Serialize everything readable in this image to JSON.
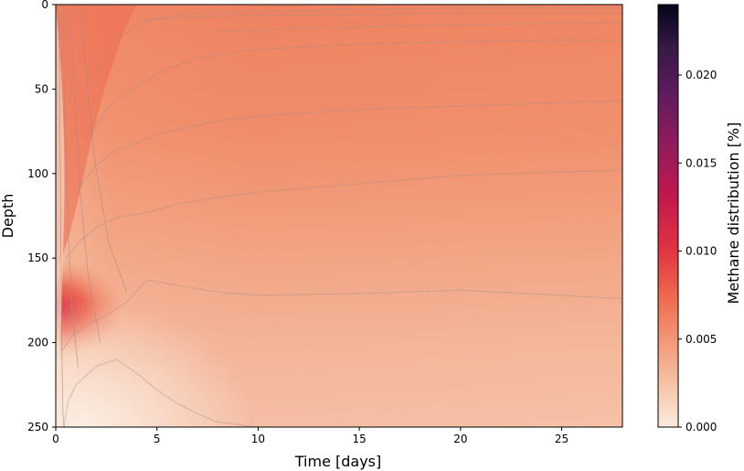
{
  "chart_data": {
    "type": "heatmap",
    "title": "",
    "xlabel": "Time [days]",
    "ylabel": "Depth",
    "colorbar_label": "Methane distribution [%]",
    "xlim": [
      0,
      28
    ],
    "ylim": [
      250,
      0
    ],
    "y_inverted": true,
    "x_ticks": [
      0,
      5,
      10,
      15,
      20,
      25
    ],
    "x_tick_labels": [
      "0",
      "5",
      "10",
      "15",
      "20",
      "25"
    ],
    "y_ticks": [
      0,
      50,
      100,
      150,
      200,
      250
    ],
    "y_tick_labels": [
      "0",
      "50",
      "100",
      "150",
      "200",
      "250"
    ],
    "colorbar_range": [
      0,
      0.024
    ],
    "colorbar_ticks": [
      0,
      0.005,
      0.01,
      0.015,
      0.02
    ],
    "colorbar_tick_labels": [
      "0.000",
      "0.005",
      "0.010",
      "0.015",
      "0.020"
    ],
    "colormap": "rocket_r",
    "colormap_stops": [
      {
        "v": 0.0,
        "color": "#faebdd"
      },
      {
        "v": 0.1,
        "color": "#f6c4a8"
      },
      {
        "v": 0.2,
        "color": "#f39a7a"
      },
      {
        "v": 0.3,
        "color": "#ef6d4f"
      },
      {
        "v": 0.42,
        "color": "#e13342"
      },
      {
        "v": 0.55,
        "color": "#c0184f"
      },
      {
        "v": 0.68,
        "color": "#8c1c5c"
      },
      {
        "v": 0.8,
        "color": "#5a1b5c"
      },
      {
        "v": 0.9,
        "color": "#351a44"
      },
      {
        "v": 1.0,
        "color": "#03051a"
      }
    ],
    "contour_color": "#a88c86",
    "grid": false,
    "field_samples": [
      {
        "time": 0,
        "depth": 180,
        "value": 0.0105
      },
      {
        "time": 0.2,
        "depth": 150,
        "value": 0.0075
      },
      {
        "time": 2,
        "depth": 60,
        "value": 0.0085
      },
      {
        "time": 3,
        "depth": 50,
        "value": 0.0068
      },
      {
        "time": 10,
        "depth": 30,
        "value": 0.0066
      },
      {
        "time": 15,
        "depth": 80,
        "value": 0.0058
      },
      {
        "time": 20,
        "depth": 130,
        "value": 0.0048
      },
      {
        "time": 25,
        "depth": 190,
        "value": 0.0032
      },
      {
        "time": 15,
        "depth": 245,
        "value": 0.0021
      },
      {
        "time": 1,
        "depth": 240,
        "value": 0.0008
      }
    ]
  }
}
